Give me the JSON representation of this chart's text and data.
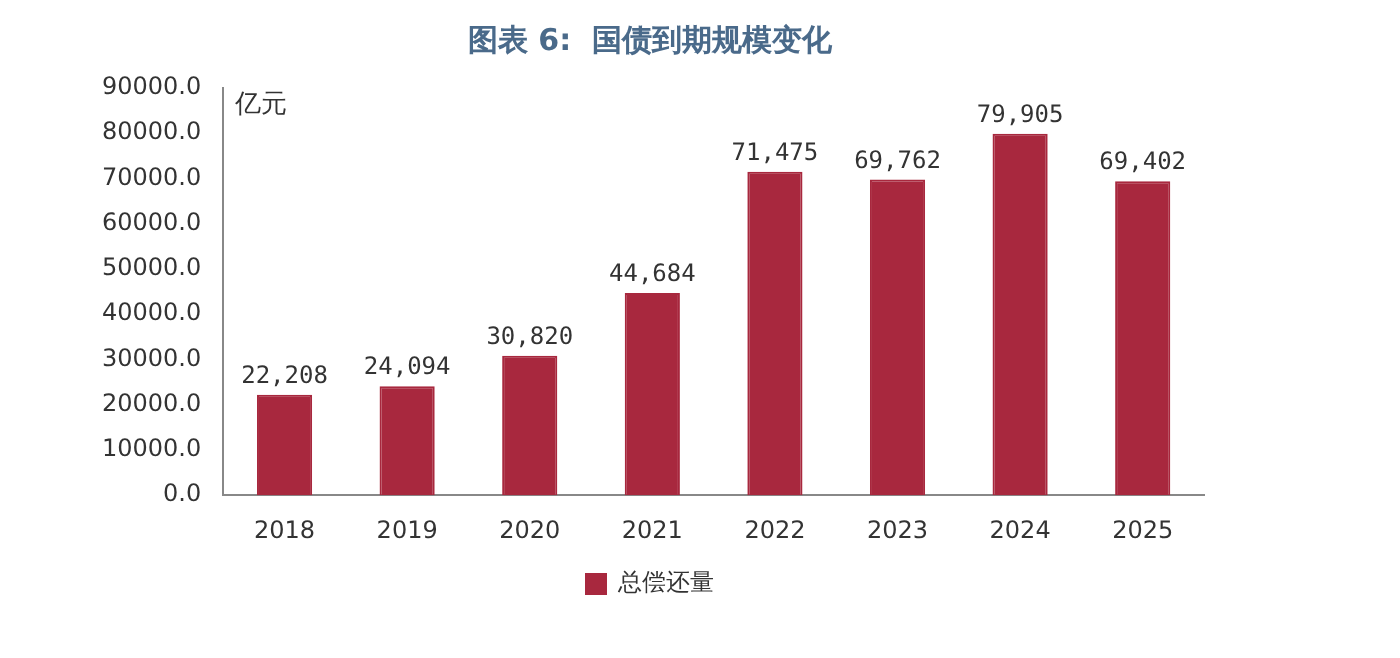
{
  "chart_data": {
    "type": "bar",
    "title": "图表 6:  国债到期规模变化",
    "ylabel": "亿元",
    "categories": [
      "2018",
      "2019",
      "2020",
      "2021",
      "2022",
      "2023",
      "2024",
      "2025"
    ],
    "series": [
      {
        "name": "总偿还量",
        "color": "#a8283e",
        "values": [
          22208,
          24094,
          30820,
          44684,
          71475,
          69762,
          79905,
          69402
        ],
        "value_labels": [
          "22,208",
          "24,094",
          "30,820",
          "44,684",
          "71,475",
          "69,762",
          "79,905",
          "69,402"
        ]
      }
    ],
    "ylim": [
      0,
      90000
    ],
    "yticks": [
      {
        "value": 0,
        "label": "0.0"
      },
      {
        "value": 10000,
        "label": "10000.0"
      },
      {
        "value": 20000,
        "label": "20000.0"
      },
      {
        "value": 30000,
        "label": "30000.0"
      },
      {
        "value": 40000,
        "label": "40000.0"
      },
      {
        "value": 50000,
        "label": "50000.0"
      },
      {
        "value": 60000,
        "label": "60000.0"
      },
      {
        "value": 70000,
        "label": "70000.0"
      },
      {
        "value": 80000,
        "label": "80000.0"
      },
      {
        "value": 90000,
        "label": "90000.0"
      }
    ],
    "grid": false,
    "legend": "bottom"
  }
}
